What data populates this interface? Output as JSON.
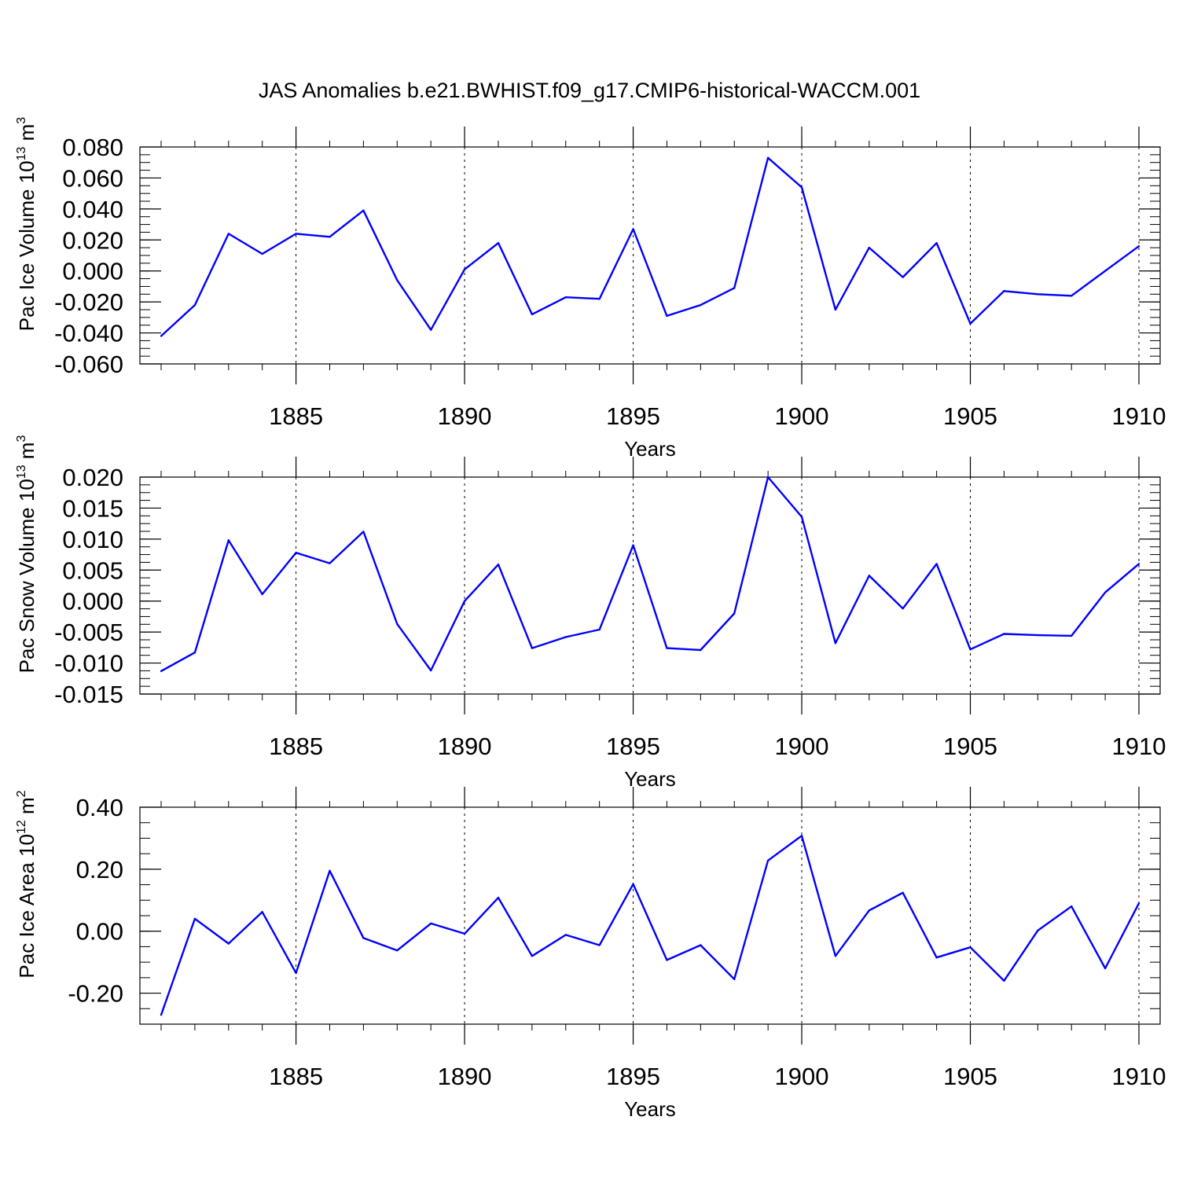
{
  "figure_title": "JAS Anomalies b.e21.BWHIST.f09_g17.CMIP6-historical-WACCM.001",
  "colors": {
    "series": "#0000ff",
    "axis": "#000000",
    "grid": "#000000"
  },
  "chart_data": [
    {
      "type": "line",
      "ylabel": "Pac Ice Volume 10",
      "ylabel_exp": "13",
      "ylabel_unit": " m",
      "ylabel_unit_exp": "3",
      "xlabel": "Years",
      "xlim": [
        1881,
        1910
      ],
      "ylim": [
        -0.06,
        0.08
      ],
      "yticks": [
        -0.06,
        -0.04,
        -0.02,
        0.0,
        0.02,
        0.04,
        0.06,
        0.08
      ],
      "ytick_labels": [
        "-0.060",
        "-0.040",
        "-0.020",
        "0.000",
        "0.020",
        "0.040",
        "0.060",
        "0.080"
      ],
      "yminor": 0.005,
      "xticks": [
        1885,
        1890,
        1895,
        1900,
        1905,
        1910
      ],
      "xtick_labels": [
        "1885",
        "1890",
        "1895",
        "1900",
        "1905",
        "1910"
      ],
      "grid": "vertical dashed at major x ticks",
      "x": [
        1881,
        1882,
        1883,
        1884,
        1885,
        1886,
        1887,
        1888,
        1889,
        1890,
        1891,
        1892,
        1893,
        1894,
        1895,
        1896,
        1897,
        1898,
        1899,
        1900,
        1901,
        1902,
        1903,
        1904,
        1905,
        1906,
        1907,
        1908,
        1909,
        1910
      ],
      "values": [
        -0.042,
        -0.022,
        0.024,
        0.011,
        0.024,
        0.022,
        0.039,
        -0.006,
        -0.038,
        0.001,
        0.018,
        -0.028,
        -0.017,
        -0.018,
        0.027,
        -0.029,
        -0.022,
        -0.011,
        0.073,
        0.054,
        -0.025,
        0.015,
        -0.004,
        0.018,
        -0.034,
        -0.013,
        -0.015,
        -0.016,
        0.0,
        0.016
      ]
    },
    {
      "type": "line",
      "ylabel": "Pac Snow Volume 10",
      "ylabel_exp": "13",
      "ylabel_unit": " m",
      "ylabel_unit_exp": "3",
      "xlabel": "Years",
      "xlim": [
        1881,
        1910
      ],
      "ylim": [
        -0.015,
        0.02
      ],
      "yticks": [
        -0.015,
        -0.01,
        -0.005,
        0.0,
        0.005,
        0.01,
        0.015,
        0.02
      ],
      "ytick_labels": [
        "-0.015",
        "-0.010",
        "-0.005",
        "0.000",
        "0.005",
        "0.010",
        "0.015",
        "0.020"
      ],
      "yminor": 0.00125,
      "xticks": [
        1885,
        1890,
        1895,
        1900,
        1905,
        1910
      ],
      "xtick_labels": [
        "1885",
        "1890",
        "1895",
        "1900",
        "1905",
        "1910"
      ],
      "grid": "vertical dashed at major x ticks",
      "x": [
        1881,
        1882,
        1883,
        1884,
        1885,
        1886,
        1887,
        1888,
        1889,
        1890,
        1891,
        1892,
        1893,
        1894,
        1895,
        1896,
        1897,
        1898,
        1899,
        1900,
        1901,
        1902,
        1903,
        1904,
        1905,
        1906,
        1907,
        1908,
        1909,
        1910
      ],
      "values": [
        -0.0113,
        -0.0083,
        0.0098,
        0.0011,
        0.0078,
        0.0061,
        0.0112,
        -0.0037,
        -0.0112,
        0.0,
        0.0059,
        -0.0076,
        -0.0058,
        -0.0046,
        0.009,
        -0.0076,
        -0.0079,
        -0.002,
        0.02,
        0.0136,
        -0.0068,
        0.0041,
        -0.0012,
        0.006,
        -0.0078,
        -0.0053,
        -0.0055,
        -0.0056,
        0.0014,
        0.006
      ]
    },
    {
      "type": "line",
      "ylabel": "Pac Ice Area 10",
      "ylabel_exp": "12",
      "ylabel_unit": " m",
      "ylabel_unit_exp": "2",
      "xlabel": "Years",
      "xlim": [
        1881,
        1910
      ],
      "ylim": [
        -0.3,
        0.4
      ],
      "yticks": [
        -0.2,
        0.0,
        0.2,
        0.4
      ],
      "ytick_labels": [
        "-0.20",
        "0.00",
        "0.20",
        "0.40"
      ],
      "yminor": 0.05,
      "xticks": [
        1885,
        1890,
        1895,
        1900,
        1905,
        1910
      ],
      "xtick_labels": [
        "1885",
        "1890",
        "1895",
        "1900",
        "1905",
        "1910"
      ],
      "grid": "vertical dashed at major x ticks",
      "x": [
        1881,
        1882,
        1883,
        1884,
        1885,
        1886,
        1887,
        1888,
        1889,
        1890,
        1891,
        1892,
        1893,
        1894,
        1895,
        1896,
        1897,
        1898,
        1899,
        1900,
        1901,
        1902,
        1903,
        1904,
        1905,
        1906,
        1907,
        1908,
        1909,
        1910
      ],
      "values": [
        -0.27,
        0.04,
        -0.04,
        0.062,
        -0.135,
        0.195,
        -0.022,
        -0.062,
        0.025,
        -0.008,
        0.108,
        -0.08,
        -0.012,
        -0.045,
        0.152,
        -0.093,
        -0.045,
        -0.155,
        0.228,
        0.308,
        -0.08,
        0.067,
        0.124,
        -0.085,
        -0.052,
        -0.16,
        0.002,
        0.08,
        -0.12,
        0.09
      ]
    }
  ]
}
